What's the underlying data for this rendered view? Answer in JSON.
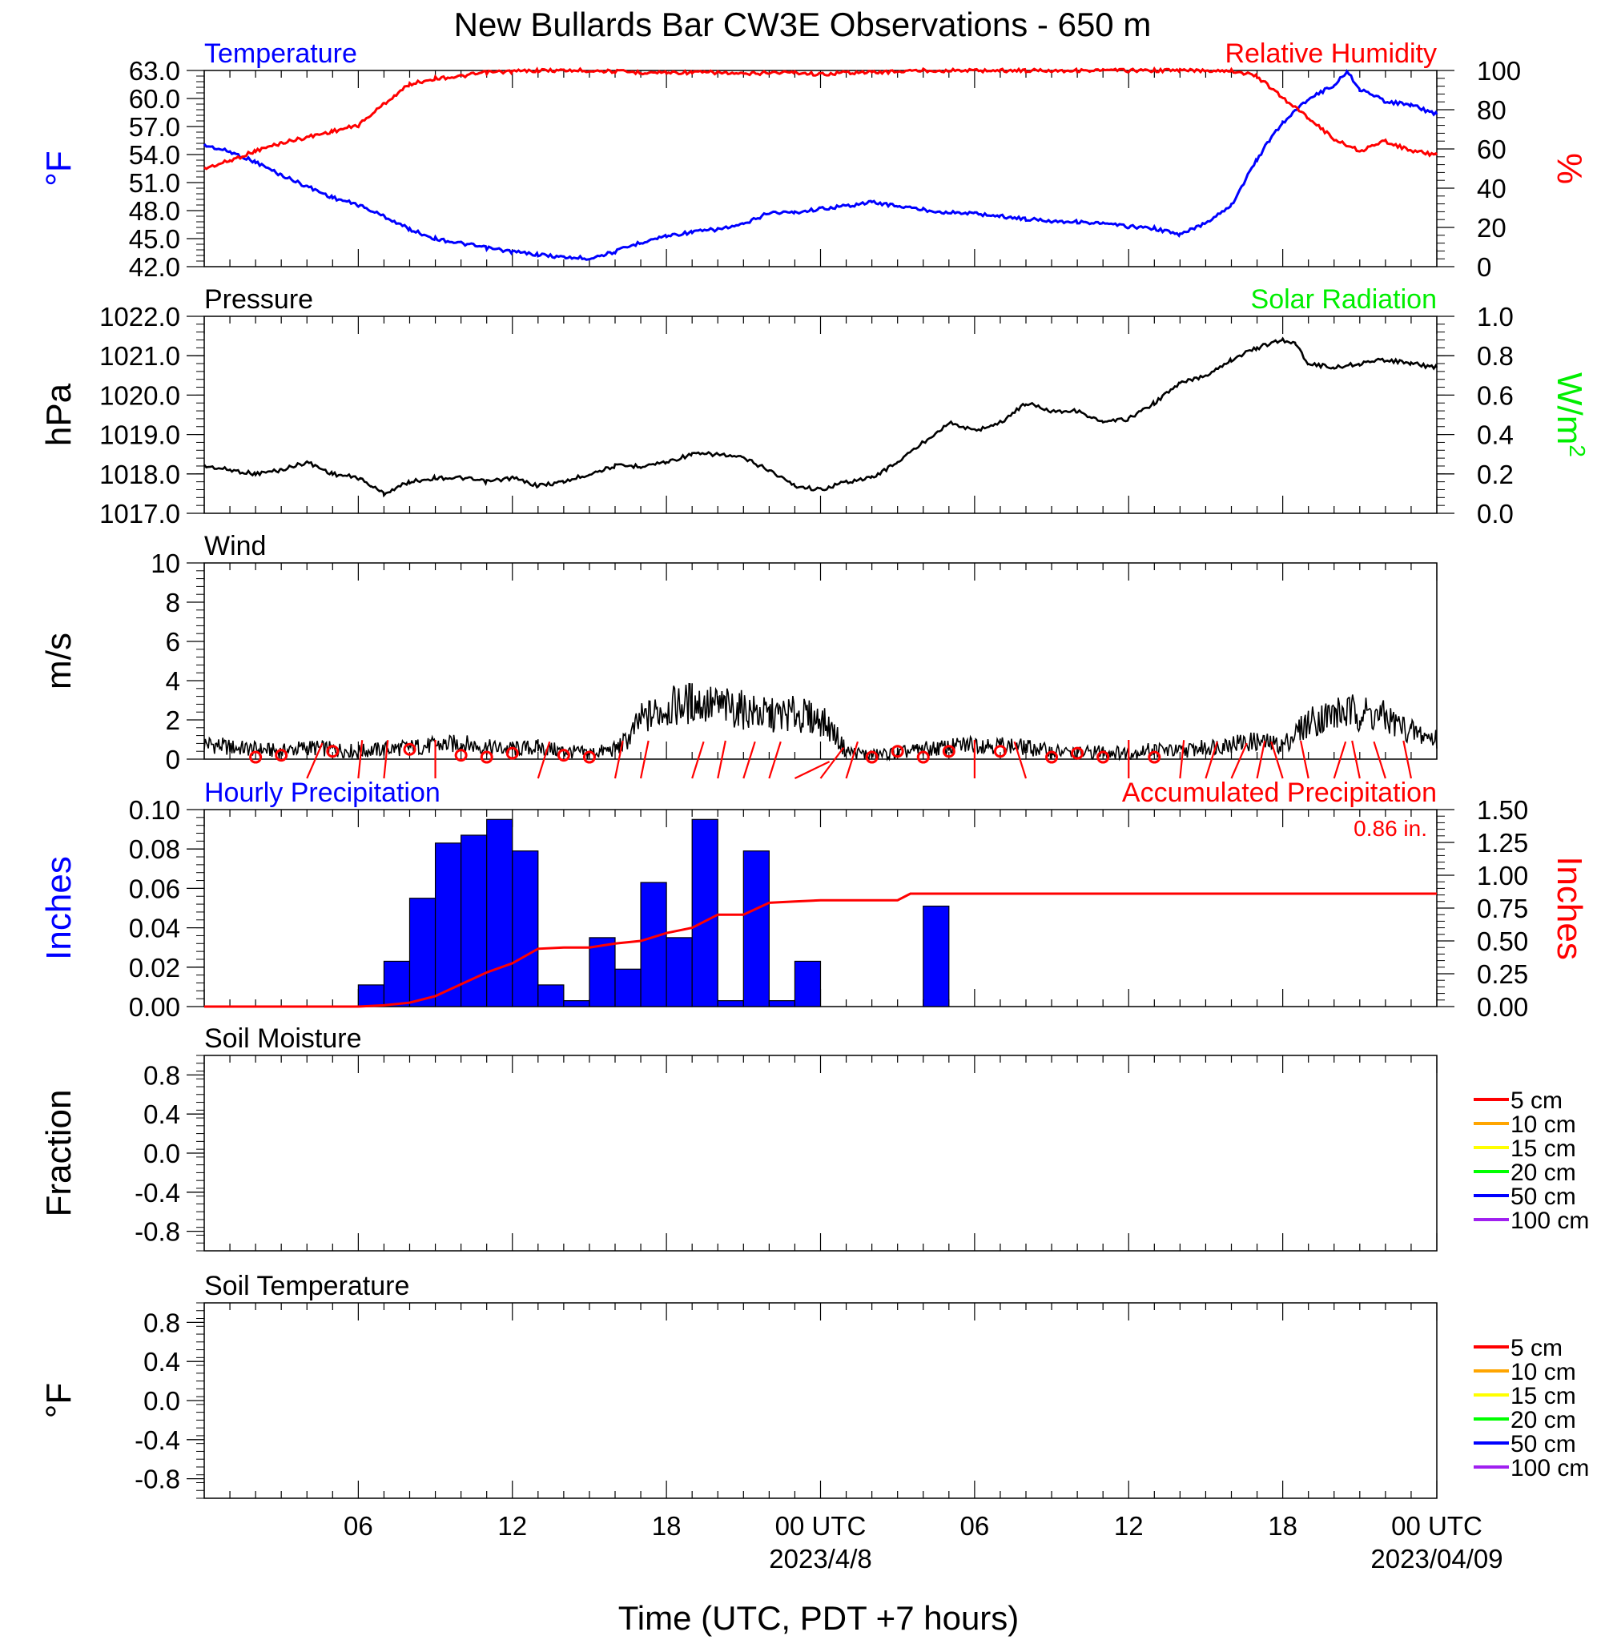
{
  "title": "New Bullards Bar CW3E Observations - 650 m",
  "xlabel": "Time (UTC, PDT +7 hours)",
  "x_ticks": [
    {
      "hour": 6,
      "label": "06",
      "date": ""
    },
    {
      "hour": 12,
      "label": "12",
      "date": ""
    },
    {
      "hour": 18,
      "label": "18",
      "date": ""
    },
    {
      "hour": 24,
      "label": "00 UTC",
      "date": "2023/4/8"
    },
    {
      "hour": 30,
      "label": "06",
      "date": ""
    },
    {
      "hour": 36,
      "label": "12",
      "date": ""
    },
    {
      "hour": 42,
      "label": "18",
      "date": ""
    },
    {
      "hour": 48,
      "label": "00 UTC",
      "date": "2023/04/09"
    }
  ],
  "chart_data": [
    {
      "type": "line",
      "panel": "temperature-humidity",
      "left_title": "Temperature",
      "right_title": "Relative Humidity",
      "ylabel_left": "°F",
      "ylabel_right": "%",
      "ylim_left": [
        42,
        63
      ],
      "ylim_right": [
        0,
        100
      ],
      "yticks_left": [
        "42.0",
        "45.0",
        "48.0",
        "51.0",
        "54.0",
        "57.0",
        "60.0",
        "63.0"
      ],
      "yticks_right": [
        "0",
        "20",
        "40",
        "60",
        "80",
        "100"
      ],
      "x_unit": "hours since 2023-04-07 00 UTC",
      "series": [
        {
          "name": "Temperature",
          "color": "#0000ff",
          "axis": "left",
          "x": [
            0,
            1,
            2,
            3,
            4,
            5,
            6,
            7,
            8,
            9,
            10,
            11,
            12,
            13,
            14,
            15,
            16,
            17,
            18,
            19,
            20,
            21,
            22,
            23,
            24,
            25,
            26,
            27,
            28,
            29,
            30,
            31,
            32,
            33,
            34,
            35,
            36,
            37,
            38,
            39,
            40,
            41,
            41.5,
            42,
            43,
            44,
            44.5,
            45,
            46,
            47,
            48
          ],
          "y": [
            55.0,
            54.3,
            53.2,
            51.8,
            50.6,
            49.4,
            48.6,
            47.4,
            46.0,
            45.0,
            44.5,
            44.0,
            43.6,
            43.3,
            43.0,
            42.9,
            43.6,
            44.6,
            45.3,
            45.7,
            46.0,
            46.5,
            47.8,
            47.8,
            48.2,
            48.5,
            48.9,
            48.5,
            48.1,
            47.8,
            47.7,
            47.4,
            47.1,
            46.9,
            46.8,
            46.6,
            46.3,
            46.1,
            45.4,
            46.7,
            48.6,
            53.5,
            55.6,
            57.4,
            60.0,
            61.4,
            62.9,
            61.0,
            59.7,
            59.3,
            58.3
          ]
        },
        {
          "name": "Relative Humidity",
          "color": "#ff0000",
          "axis": "right",
          "x": [
            0,
            1,
            2,
            3,
            4,
            5,
            6,
            7,
            8,
            9,
            10,
            11,
            12,
            13,
            14,
            15,
            16,
            17,
            18,
            19,
            20,
            21,
            22,
            23,
            24,
            25,
            26,
            27,
            28,
            29,
            30,
            31,
            32,
            33,
            34,
            35,
            36,
            37,
            38,
            39,
            40,
            41,
            42,
            43,
            44,
            45,
            46,
            47,
            48
          ],
          "y": [
            50,
            54,
            59,
            63,
            66,
            69,
            72,
            83,
            93,
            96,
            97,
            99,
            99.5,
            100,
            100,
            100,
            99.5,
            99,
            99,
            99,
            99,
            98,
            99,
            99,
            98,
            99,
            99,
            99.5,
            100,
            100,
            100,
            100,
            100,
            100,
            100,
            100,
            100,
            100,
            100,
            100,
            100,
            97,
            86,
            76,
            65,
            59,
            64,
            59,
            57
          ]
        }
      ]
    },
    {
      "type": "line",
      "panel": "pressure-solar",
      "left_title": "Pressure",
      "right_title": "Solar Radiation",
      "ylabel_left": "hPa",
      "ylabel_right": "W/m",
      "ylabel_right_sup": "2",
      "ylim_left": [
        1017,
        1022
      ],
      "ylim_right": [
        0,
        1
      ],
      "yticks_left": [
        "1017.0",
        "1018.0",
        "1019.0",
        "1020.0",
        "1021.0",
        "1022.0"
      ],
      "yticks_right": [
        "0.0",
        "0.2",
        "0.4",
        "0.6",
        "0.8",
        "1.0"
      ],
      "series": [
        {
          "name": "Pressure",
          "color": "#000000",
          "axis": "left",
          "x": [
            0,
            1,
            2,
            3,
            4,
            5,
            6,
            6.5,
            7,
            8,
            9,
            10,
            11,
            12,
            13,
            14,
            15,
            16,
            17,
            18,
            19,
            20,
            21,
            22,
            23,
            24,
            25,
            26,
            27,
            28,
            29,
            30,
            31,
            32,
            33,
            34,
            35,
            36,
            37,
            38,
            39,
            40,
            41,
            42,
            42.5,
            43,
            44,
            45,
            46,
            47,
            48
          ],
          "y": [
            1018.2,
            1018.1,
            1018.0,
            1018.1,
            1018.3,
            1018.0,
            1017.9,
            1017.7,
            1017.5,
            1017.8,
            1017.9,
            1017.9,
            1017.8,
            1017.9,
            1017.7,
            1017.8,
            1018.0,
            1018.2,
            1018.2,
            1018.3,
            1018.5,
            1018.5,
            1018.4,
            1018.1,
            1017.7,
            1017.6,
            1017.8,
            1017.9,
            1018.3,
            1018.8,
            1019.3,
            1019.1,
            1019.3,
            1019.8,
            1019.6,
            1019.6,
            1019.3,
            1019.4,
            1019.8,
            1020.3,
            1020.5,
            1020.9,
            1021.2,
            1021.4,
            1021.3,
            1020.8,
            1020.7,
            1020.8,
            1020.9,
            1020.8,
            1020.7
          ]
        }
      ]
    },
    {
      "type": "line",
      "panel": "wind",
      "left_title": "Wind",
      "ylabel_left": "m/s",
      "ylim_left": [
        0,
        10
      ],
      "yticks_left": [
        "0",
        "2",
        "4",
        "6",
        "8",
        "10"
      ],
      "series": [
        {
          "name": "Wind speed",
          "color": "#000000",
          "axis": "left",
          "x": [
            0,
            1,
            2,
            3,
            4,
            5,
            6,
            7,
            8,
            9,
            10,
            11,
            12,
            13,
            14,
            15,
            16,
            16.5,
            17,
            18,
            19,
            20,
            21,
            22,
            23,
            24,
            24.5,
            25,
            26,
            27,
            28,
            29,
            30,
            31,
            32,
            33,
            34,
            35,
            36,
            37,
            38,
            39,
            40,
            41,
            42,
            43,
            44,
            45,
            46,
            47,
            48
          ],
          "y": [
            0.8,
            0.6,
            0.5,
            0.4,
            0.6,
            0.5,
            0.4,
            0.5,
            0.6,
            0.7,
            0.8,
            0.6,
            0.5,
            0.6,
            0.4,
            0.3,
            0.5,
            1.0,
            2.0,
            2.6,
            2.9,
            2.7,
            2.5,
            2.2,
            2.3,
            2.0,
            1.4,
            0.4,
            0.2,
            0.3,
            0.5,
            0.6,
            0.8,
            0.7,
            0.6,
            0.4,
            0.3,
            0.4,
            0.3,
            0.5,
            0.4,
            0.6,
            0.8,
            0.9,
            0.7,
            1.9,
            2.3,
            2.4,
            2.1,
            1.4,
            1.0
          ]
        }
      ],
      "barbs": {
        "color": "#ff0000",
        "calm_hours": [
          2,
          3,
          5,
          8,
          10,
          11,
          12,
          14,
          15,
          26,
          27,
          28,
          29,
          31,
          33,
          34,
          35,
          37
        ],
        "calm_speeds": [
          0.1,
          0.2,
          0.4,
          0.5,
          0.2,
          0.1,
          0.3,
          0.2,
          0.1,
          0.1,
          0.4,
          0.1,
          0.4,
          0.4,
          0.1,
          0.3,
          0.1,
          0.1
        ],
        "sticks": [
          {
            "hour": 4,
            "tilt": 0.4
          },
          {
            "hour": 6,
            "tilt": 0.1
          },
          {
            "hour": 7,
            "tilt": 0.1
          },
          {
            "hour": 9,
            "tilt": 0
          },
          {
            "hour": 13,
            "tilt": 0.3
          },
          {
            "hour": 16,
            "tilt": 0.2
          },
          {
            "hour": 17,
            "tilt": 0.2
          },
          {
            "hour": 19,
            "tilt": 0.3
          },
          {
            "hour": 20,
            "tilt": 0.2
          },
          {
            "hour": 21,
            "tilt": 0.3
          },
          {
            "hour": 22,
            "tilt": 0.3
          },
          {
            "hour": 23,
            "tilt": 0.9
          },
          {
            "hour": 24,
            "tilt": 0.6
          },
          {
            "hour": 25,
            "tilt": 0.3
          },
          {
            "hour": 30,
            "tilt": 0
          },
          {
            "hour": 32,
            "tilt": -0.3
          },
          {
            "hour": 36,
            "tilt": 0
          },
          {
            "hour": 38,
            "tilt": 0.1
          },
          {
            "hour": 39,
            "tilt": 0.3
          },
          {
            "hour": 40,
            "tilt": 0.4
          },
          {
            "hour": 41,
            "tilt": 0.2
          },
          {
            "hour": 42,
            "tilt": -0.3
          },
          {
            "hour": 43,
            "tilt": -0.2
          },
          {
            "hour": 44,
            "tilt": 0.3
          },
          {
            "hour": 45,
            "tilt": -0.2
          },
          {
            "hour": 46,
            "tilt": -0.3
          },
          {
            "hour": 47,
            "tilt": -0.2
          }
        ]
      }
    },
    {
      "type": "bar",
      "panel": "precipitation",
      "left_title": "Hourly Precipitation",
      "right_title": "Accumulated Precipitation",
      "total_label": "0.86 in.",
      "ylabel_left": "Inches",
      "ylabel_right": "Inches",
      "ylim_left": [
        0,
        0.1
      ],
      "ylim_right": [
        0,
        1.5
      ],
      "yticks_left": [
        "0.00",
        "0.02",
        "0.04",
        "0.06",
        "0.08",
        "0.10"
      ],
      "yticks_right": [
        "0.00",
        "0.25",
        "0.50",
        "0.75",
        "1.00",
        "1.25",
        "1.50"
      ],
      "hourly": {
        "name": "Hourly Precipitation",
        "color": "#0000ff",
        "hour_start": [
          6,
          7,
          8,
          9,
          10,
          11,
          12,
          13,
          14,
          15,
          16,
          17,
          18,
          19,
          20,
          21,
          22,
          23,
          24,
          25,
          26,
          27,
          28
        ],
        "values": [
          0.011,
          0.023,
          0.055,
          0.083,
          0.087,
          0.095,
          0.079,
          0.011,
          0.003,
          0.035,
          0.019,
          0.063,
          0.035,
          0.095,
          0.003,
          0.079,
          0.003,
          0.023,
          0,
          0,
          0,
          0,
          0.051
        ]
      },
      "accumulated": {
        "name": "Accumulated Precipitation",
        "color": "#ff0000",
        "x": [
          0,
          6,
          7,
          8,
          9,
          10,
          11,
          12,
          13,
          14,
          15,
          16,
          17,
          18,
          19,
          20,
          21,
          22,
          23,
          24,
          25,
          26,
          27,
          27.5,
          48
        ],
        "y": [
          0,
          0,
          0.01,
          0.03,
          0.08,
          0.17,
          0.26,
          0.33,
          0.44,
          0.45,
          0.45,
          0.48,
          0.5,
          0.56,
          0.6,
          0.7,
          0.7,
          0.79,
          0.8,
          0.81,
          0.81,
          0.81,
          0.81,
          0.86,
          0.86
        ]
      }
    },
    {
      "type": "line",
      "panel": "soil-moisture",
      "left_title": "Soil Moisture",
      "ylabel_left": "Fraction",
      "ylim_left": [
        -1,
        1
      ],
      "yticks_left": [
        "-0.8",
        "-0.4",
        "0.0",
        "0.4",
        "0.8"
      ],
      "series": [],
      "legend": [
        {
          "label": "5 cm",
          "color": "#ff0000"
        },
        {
          "label": "10 cm",
          "color": "#ffa500"
        },
        {
          "label": "15 cm",
          "color": "#ffff00"
        },
        {
          "label": "20 cm",
          "color": "#00ff00"
        },
        {
          "label": "50 cm",
          "color": "#0000ff"
        },
        {
          "label": "100 cm",
          "color": "#a020f0"
        }
      ]
    },
    {
      "type": "line",
      "panel": "soil-temperature",
      "left_title": "Soil Temperature",
      "ylabel_left": "°F",
      "ylim_left": [
        -1,
        1
      ],
      "yticks_left": [
        "-0.8",
        "-0.4",
        "0.0",
        "0.4",
        "0.8"
      ],
      "series": [],
      "legend": [
        {
          "label": "5 cm",
          "color": "#ff0000"
        },
        {
          "label": "10 cm",
          "color": "#ffa500"
        },
        {
          "label": "15 cm",
          "color": "#ffff00"
        },
        {
          "label": "20 cm",
          "color": "#00ff00"
        },
        {
          "label": "50 cm",
          "color": "#0000ff"
        },
        {
          "label": "100 cm",
          "color": "#a020f0"
        }
      ]
    }
  ]
}
